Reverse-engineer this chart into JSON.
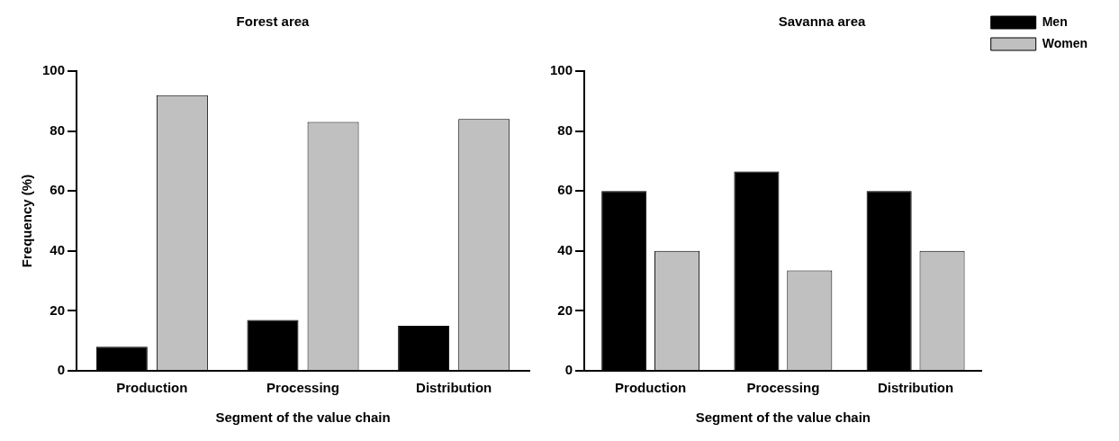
{
  "chart_data": [
    {
      "type": "bar",
      "title": "Forest area",
      "xlabel": "Segment of the value chain",
      "ylabel": "Frequency (%)",
      "categories": [
        "Production",
        "Processing",
        "Distribution"
      ],
      "series": [
        {
          "color": "#000000",
          "values": [
            8,
            17,
            15
          ]
        },
        {
          "color": "#c0c0c0",
          "values": [
            92,
            83,
            84
          ]
        }
      ],
      "ylim": [
        0,
        100
      ],
      "yticks": [
        0,
        20,
        40,
        60,
        80,
        100
      ],
      "grid": false,
      "legend": false
    },
    {
      "type": "bar",
      "title": "Savanna area",
      "xlabel": "Segment of the value chain",
      "categories": [
        "Production",
        "Processing",
        "Distribution"
      ],
      "series": [
        {
          "name": "Men",
          "color": "#000000",
          "values": [
            60,
            66.5,
            60
          ]
        },
        {
          "name": "Women",
          "color": "#c0c0c0",
          "values": [
            40,
            33.5,
            40
          ]
        }
      ],
      "ylim": [
        0,
        100
      ],
      "yticks": [
        0,
        20,
        40,
        60,
        80,
        100
      ],
      "grid": false,
      "legend": "top right"
    }
  ]
}
